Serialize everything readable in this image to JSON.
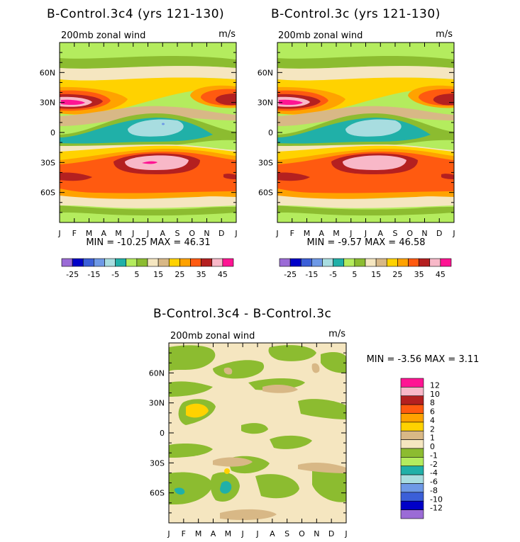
{
  "chart_data": [
    {
      "type": "heatmap",
      "title": "B-Control.3c4 (yrs 121-130)",
      "subtitle": "200mb zonal wind",
      "units": "m/s",
      "x_ticks": [
        "J",
        "F",
        "M",
        "A",
        "M",
        "J",
        "J",
        "A",
        "S",
        "O",
        "N",
        "D",
        "J"
      ],
      "y_ticks": [
        "60N",
        "30N",
        "0",
        "30S",
        "60S"
      ],
      "stats": "MIN = -10.25 MAX = 46.31",
      "colorbar_labels": [
        "-25",
        "-15",
        "-5",
        "5",
        "15",
        "25",
        "35",
        "45"
      ],
      "colorbar_colors": [
        "#9b6bd6",
        "#0000c8",
        "#3b5fd8",
        "#6e99e6",
        "#a8dde0",
        "#20b0a8",
        "#b4ec5e",
        "#8cbc30",
        "#f5e6c0",
        "#d8b886",
        "#ffd200",
        "#ffa200",
        "#ff5a10",
        "#b42020",
        "#f8b8c8",
        "#ff1493"
      ],
      "color_levels": [
        -25,
        -20,
        -15,
        -10,
        -5,
        0,
        5,
        10,
        15,
        20,
        25,
        30,
        35,
        40,
        45
      ],
      "zmin": -10.25,
      "zmax": 46.31
    },
    {
      "type": "heatmap",
      "title": "B-Control.3c (yrs 121-130)",
      "subtitle": "200mb zonal wind",
      "units": "m/s",
      "x_ticks": [
        "J",
        "F",
        "M",
        "A",
        "M",
        "J",
        "J",
        "A",
        "S",
        "O",
        "N",
        "D",
        "J"
      ],
      "y_ticks": [
        "60N",
        "30N",
        "0",
        "30S",
        "60S"
      ],
      "stats": "MIN = -9.57 MAX = 46.58",
      "colorbar_labels": [
        "-25",
        "-15",
        "-5",
        "5",
        "15",
        "25",
        "35",
        "45"
      ],
      "colorbar_colors": [
        "#9b6bd6",
        "#0000c8",
        "#3b5fd8",
        "#6e99e6",
        "#a8dde0",
        "#20b0a8",
        "#b4ec5e",
        "#8cbc30",
        "#f5e6c0",
        "#d8b886",
        "#ffd200",
        "#ffa200",
        "#ff5a10",
        "#b42020",
        "#f8b8c8",
        "#ff1493"
      ],
      "color_levels": [
        -25,
        -20,
        -15,
        -10,
        -5,
        0,
        5,
        10,
        15,
        20,
        25,
        30,
        35,
        40,
        45
      ],
      "zmin": -9.57,
      "zmax": 46.58
    },
    {
      "type": "heatmap",
      "title": "B-Control.3c4 - B-Control.3c",
      "subtitle": "200mb zonal wind",
      "units": "m/s",
      "x_ticks": [
        "J",
        "F",
        "M",
        "A",
        "M",
        "J",
        "J",
        "A",
        "S",
        "O",
        "N",
        "D",
        "J"
      ],
      "y_ticks": [
        "60N",
        "30N",
        "0",
        "30S",
        "60S"
      ],
      "stats": "MIN = -3.56 MAX = 3.11",
      "colorbar_labels": [
        "12",
        "10",
        "8",
        "6",
        "4",
        "2",
        "1",
        "0",
        "-1",
        "-2",
        "-4",
        "-6",
        "-8",
        "-10",
        "-12"
      ],
      "colorbar_colors": [
        "#ff1493",
        "#f8b8c8",
        "#b42020",
        "#ff5a10",
        "#ffa200",
        "#ffd200",
        "#d8b886",
        "#f5e6c0",
        "#8cbc30",
        "#b4ec5e",
        "#20b0a8",
        "#a8dde0",
        "#6e99e6",
        "#3b5fd8",
        "#0000c8",
        "#9b6bd6"
      ],
      "color_levels": [
        -12,
        -10,
        -8,
        -6,
        -4,
        -2,
        -1,
        0,
        1,
        2,
        4,
        6,
        8,
        10,
        12
      ],
      "zmin": -3.56,
      "zmax": 3.11
    }
  ]
}
